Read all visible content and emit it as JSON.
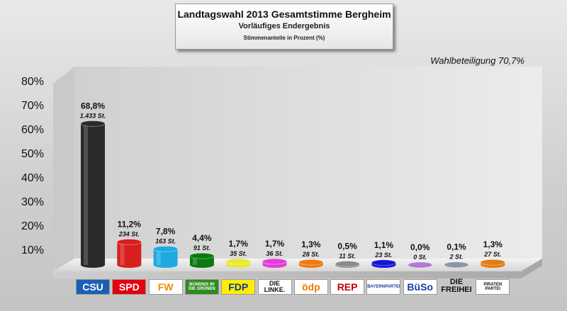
{
  "header": {
    "title": "Landtagswahl 2013 Gesamtstimme Bergheim",
    "subtitle": "Vorläufiges Endergebnis",
    "unit_note": "Stimmenanteile in Prozent (%)"
  },
  "turnout_label": "Wahlbeteiligung 70,7%",
  "chart_data": {
    "type": "bar",
    "title": "Landtagswahl 2013 Gesamtstimme Bergheim",
    "subtitle": "Vorläufiges Endergebnis",
    "ylabel": "Stimmenanteile in Prozent (%)",
    "ylim": [
      0,
      80
    ],
    "yticks": [
      "10%",
      "20%",
      "30%",
      "40%",
      "50%",
      "60%",
      "70%",
      "80%"
    ],
    "categories": [
      "CSU",
      "SPD",
      "FW",
      "GRÜNE",
      "FDP",
      "DIE LINKE",
      "ödp",
      "REP",
      "BAYERNPARTEI",
      "BüSo",
      "DIE FREIHEIT",
      "PIRATEN"
    ],
    "values": [
      68.8,
      11.2,
      7.8,
      4.4,
      1.7,
      1.7,
      1.3,
      0.5,
      1.1,
      0.0,
      0.1,
      1.3
    ],
    "value_labels": [
      "68,8%",
      "11,2%",
      "7,8%",
      "4,4%",
      "1,7%",
      "1,7%",
      "1,3%",
      "0,5%",
      "1,1%",
      "0,0%",
      "0,1%",
      "1,3%"
    ],
    "vote_counts": [
      "1.433 St.",
      "234 St.",
      "163 St.",
      "91 St.",
      "35 St.",
      "36 St.",
      "28 St.",
      "11 St.",
      "23 St.",
      "0 St.",
      "2 St.",
      "27 St."
    ],
    "colors": [
      "#2a2a2a",
      "#d81e1e",
      "#1fa9e1",
      "#0a7a10",
      "#e8e834",
      "#e23ed8",
      "#ef7a10",
      "#8a8a8a",
      "#1414d8",
      "#b27ad2",
      "#8a96a6",
      "#e57d14"
    ],
    "grid": false,
    "legend": "none"
  },
  "logos": [
    {
      "text": "CSU",
      "bg": "#1a5fb4",
      "fg": "#ffffff"
    },
    {
      "text": "SPD",
      "bg": "#e3000f",
      "fg": "#ffffff"
    },
    {
      "text": "FW",
      "bg": "#ffffff",
      "fg": "#f08c00"
    },
    {
      "text": "BÜNDNIS 90 DIE GRÜNEN",
      "bg": "#2e8b1e",
      "fg": "#ffffff"
    },
    {
      "text": "FDP",
      "bg": "#ffed00",
      "fg": "#0a3a8a"
    },
    {
      "text": "DIE LINKE.",
      "bg": "#ffffff",
      "fg": "#111111"
    },
    {
      "text": "ödp",
      "bg": "#ffffff",
      "fg": "#f07800"
    },
    {
      "text": "REP",
      "bg": "#ffffff",
      "fg": "#c00000"
    },
    {
      "text": "BAYERNPARTEI",
      "bg": "#ffffff",
      "fg": "#1a3fa0"
    },
    {
      "text": "BüSo",
      "bg": "#ffffff",
      "fg": "#1a3fa0"
    },
    {
      "text": "DIE FREIHEI",
      "bg": "transparent",
      "fg": "#111111"
    },
    {
      "text": "PIRATEN PARTEI",
      "bg": "#ffffff",
      "fg": "#111111"
    }
  ]
}
